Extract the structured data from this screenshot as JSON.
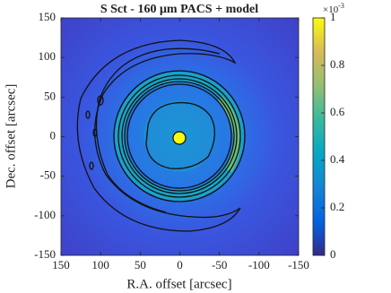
{
  "chart_data": {
    "type": "image",
    "title": "S Sct - 160 μm PACS + model",
    "xlabel": "R.A. offset [arcsec]",
    "ylabel": "Dec. offset [arcsec]",
    "xlim": [
      150,
      -150
    ],
    "xticks": [
      150,
      100,
      50,
      0,
      -50,
      -100,
      -150
    ],
    "ylim": [
      -150,
      150
    ],
    "yticks": [
      -150,
      -100,
      -50,
      0,
      50,
      100,
      150
    ],
    "colorbar": {
      "clim": [
        0,
        1
      ],
      "ticks": [
        0,
        0.2,
        0.4,
        0.6,
        0.8,
        1
      ],
      "scale_base": "×10",
      "scale_exponent": "-3",
      "colors": [
        "#352a87",
        "#0363e1",
        "#1485d4",
        "#06a7c6",
        "#38b99e",
        "#92bf73",
        "#d9ba56",
        "#f9fb0e"
      ]
    }
  }
}
